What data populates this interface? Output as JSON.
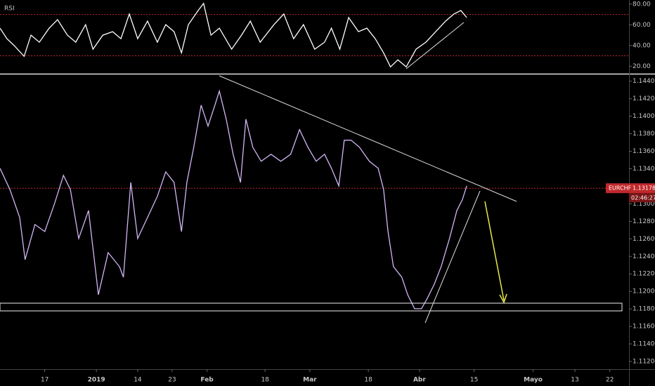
{
  "chart_data": [
    {
      "type": "line",
      "title": "RSI",
      "x": [
        0,
        1.4,
        2.9,
        4.9,
        6.3,
        8,
        10,
        11.7,
        13.7,
        15.4,
        17.4,
        18.9,
        20.9,
        22.9,
        24.6,
        26.3,
        28,
        30,
        32,
        33.7,
        35.4,
        36.9,
        38.3,
        40.3,
        41.4,
        42.9,
        44.6,
        47.1,
        49.1,
        50.9,
        52.9,
        55.7,
        57.7,
        59.7,
        61.7,
        64,
        66,
        67.4,
        69.1,
        70.9,
        72.9,
        74.6,
        76.3,
        78,
        79.4,
        80.9,
        82.6,
        84.6,
        86.6,
        88.6,
        90.6,
        92.3,
        93.7,
        94.9
      ],
      "series": [
        {
          "color": "#ffffff",
          "values": [
            56.8,
            46.6,
            39.8,
            29.5,
            50,
            43.2,
            56.8,
            65.0,
            50,
            43.2,
            60.2,
            36.4,
            50,
            53.4,
            46.6,
            70.5,
            46.6,
            63.6,
            43.2,
            60.2,
            53.4,
            32.9,
            60.2,
            73.9,
            80.7,
            50,
            56.8,
            36.4,
            50,
            63.6,
            43.2,
            60.2,
            70.5,
            46.6,
            60.2,
            36.4,
            43.2,
            56.8,
            36.4,
            67.0,
            53.4,
            56.8,
            46.6,
            32.9,
            19.3,
            26.1,
            19.3,
            36.4,
            43.2,
            53.4,
            63.6,
            70.5,
            73.9,
            67.0
          ]
        }
      ],
      "levels": [
        70,
        30
      ],
      "level_color": "#c0282b",
      "xlim": [
        0,
        127.9
      ],
      "ylim": [
        13.4,
        84
      ],
      "yticks": [
        {
          "value": 80,
          "label": "80.00"
        },
        {
          "value": 60,
          "label": "60.00"
        },
        {
          "value": 40,
          "label": "40.00"
        },
        {
          "value": 20,
          "label": "20.00"
        }
      ]
    },
    {
      "type": "line",
      "x": [
        0,
        2,
        4,
        5.1,
        7.1,
        9.1,
        11.1,
        12.9,
        14.3,
        16,
        18,
        20,
        22,
        24.3,
        25.1,
        26.6,
        28,
        30,
        32,
        33.7,
        35.4,
        36.9,
        38,
        39.4,
        40.9,
        42.3,
        43.7,
        44.6,
        46,
        47.4,
        48.9,
        50,
        51.4,
        53.1,
        55.1,
        57.1,
        59.1,
        60.9,
        62.6,
        64.3,
        66,
        67.4,
        68.9,
        70,
        71.4,
        73.1,
        75.1,
        76.9,
        78,
        78.9,
        80,
        81.7,
        82.9,
        84.3,
        85.7,
        86.9,
        88.3,
        89.7,
        91.4,
        92.9,
        94,
        94.9
      ],
      "series": [
        {
          "name": "EURCHF",
          "color": "#d2b6f5",
          "values": [
            1.13406,
            1.13165,
            1.12844,
            1.12363,
            1.12764,
            1.12684,
            1.13005,
            1.13325,
            1.13165,
            1.12604,
            1.12924,
            1.11962,
            1.12443,
            1.12283,
            1.12162,
            1.13245,
            1.12604,
            1.12844,
            1.13085,
            1.13365,
            1.13245,
            1.12684,
            1.13245,
            1.13646,
            1.14127,
            1.13887,
            1.14127,
            1.14288,
            1.13967,
            1.13566,
            1.13245,
            1.13967,
            1.13646,
            1.13486,
            1.13566,
            1.13486,
            1.13566,
            1.13847,
            1.13646,
            1.13486,
            1.13566,
            1.13406,
            1.13205,
            1.13726,
            1.13726,
            1.13646,
            1.13486,
            1.13406,
            1.13165,
            1.12684,
            1.12283,
            1.12162,
            1.11962,
            1.11802,
            1.11802,
            1.11922,
            1.12082,
            1.12283,
            1.12604,
            1.12924,
            1.13045,
            1.13205
          ]
        }
      ],
      "last_price": 1.13178,
      "last_color": "#c0282b",
      "countdown": "02:46:27",
      "xlim": [
        0,
        127.9
      ],
      "ylim": [
        1.1112,
        1.1447
      ],
      "yticks": [
        {
          "value": 1.144,
          "label": "1.14400"
        },
        {
          "value": 1.142,
          "label": "1.14200"
        },
        {
          "value": 1.14,
          "label": "1.14000"
        },
        {
          "value": 1.138,
          "label": "1.13800"
        },
        {
          "value": 1.136,
          "label": "1.13600"
        },
        {
          "value": 1.134,
          "label": "1.13400"
        },
        {
          "value": 1.132,
          "label": "1.13200"
        },
        {
          "value": 1.13,
          "label": "1.13000"
        },
        {
          "value": 1.128,
          "label": "1.12800"
        },
        {
          "value": 1.126,
          "label": "1.12600"
        },
        {
          "value": 1.124,
          "label": "1.12400"
        },
        {
          "value": 1.122,
          "label": "1.12200"
        },
        {
          "value": 1.12,
          "label": "1.12000"
        },
        {
          "value": 1.118,
          "label": "1.11800"
        },
        {
          "value": 1.116,
          "label": "1.11600"
        },
        {
          "value": 1.114,
          "label": "1.11400"
        },
        {
          "value": 1.112,
          "label": "1.11200"
        }
      ],
      "xticks": [
        {
          "value": 9.1,
          "label": "17"
        },
        {
          "value": 19.6,
          "label": "2019"
        },
        {
          "value": 28,
          "label": "14"
        },
        {
          "value": 35,
          "label": "23"
        },
        {
          "value": 42.1,
          "label": "Feb"
        },
        {
          "value": 53.9,
          "label": "18"
        },
        {
          "value": 63,
          "label": "Mar"
        },
        {
          "value": 74.9,
          "label": "18"
        },
        {
          "value": 85.3,
          "label": "Abr"
        },
        {
          "value": 96.4,
          "label": "15"
        },
        {
          "value": 108.4,
          "label": "Mayo"
        },
        {
          "value": 116.9,
          "label": "13"
        },
        {
          "value": 124,
          "label": "22"
        }
      ]
    }
  ]
}
